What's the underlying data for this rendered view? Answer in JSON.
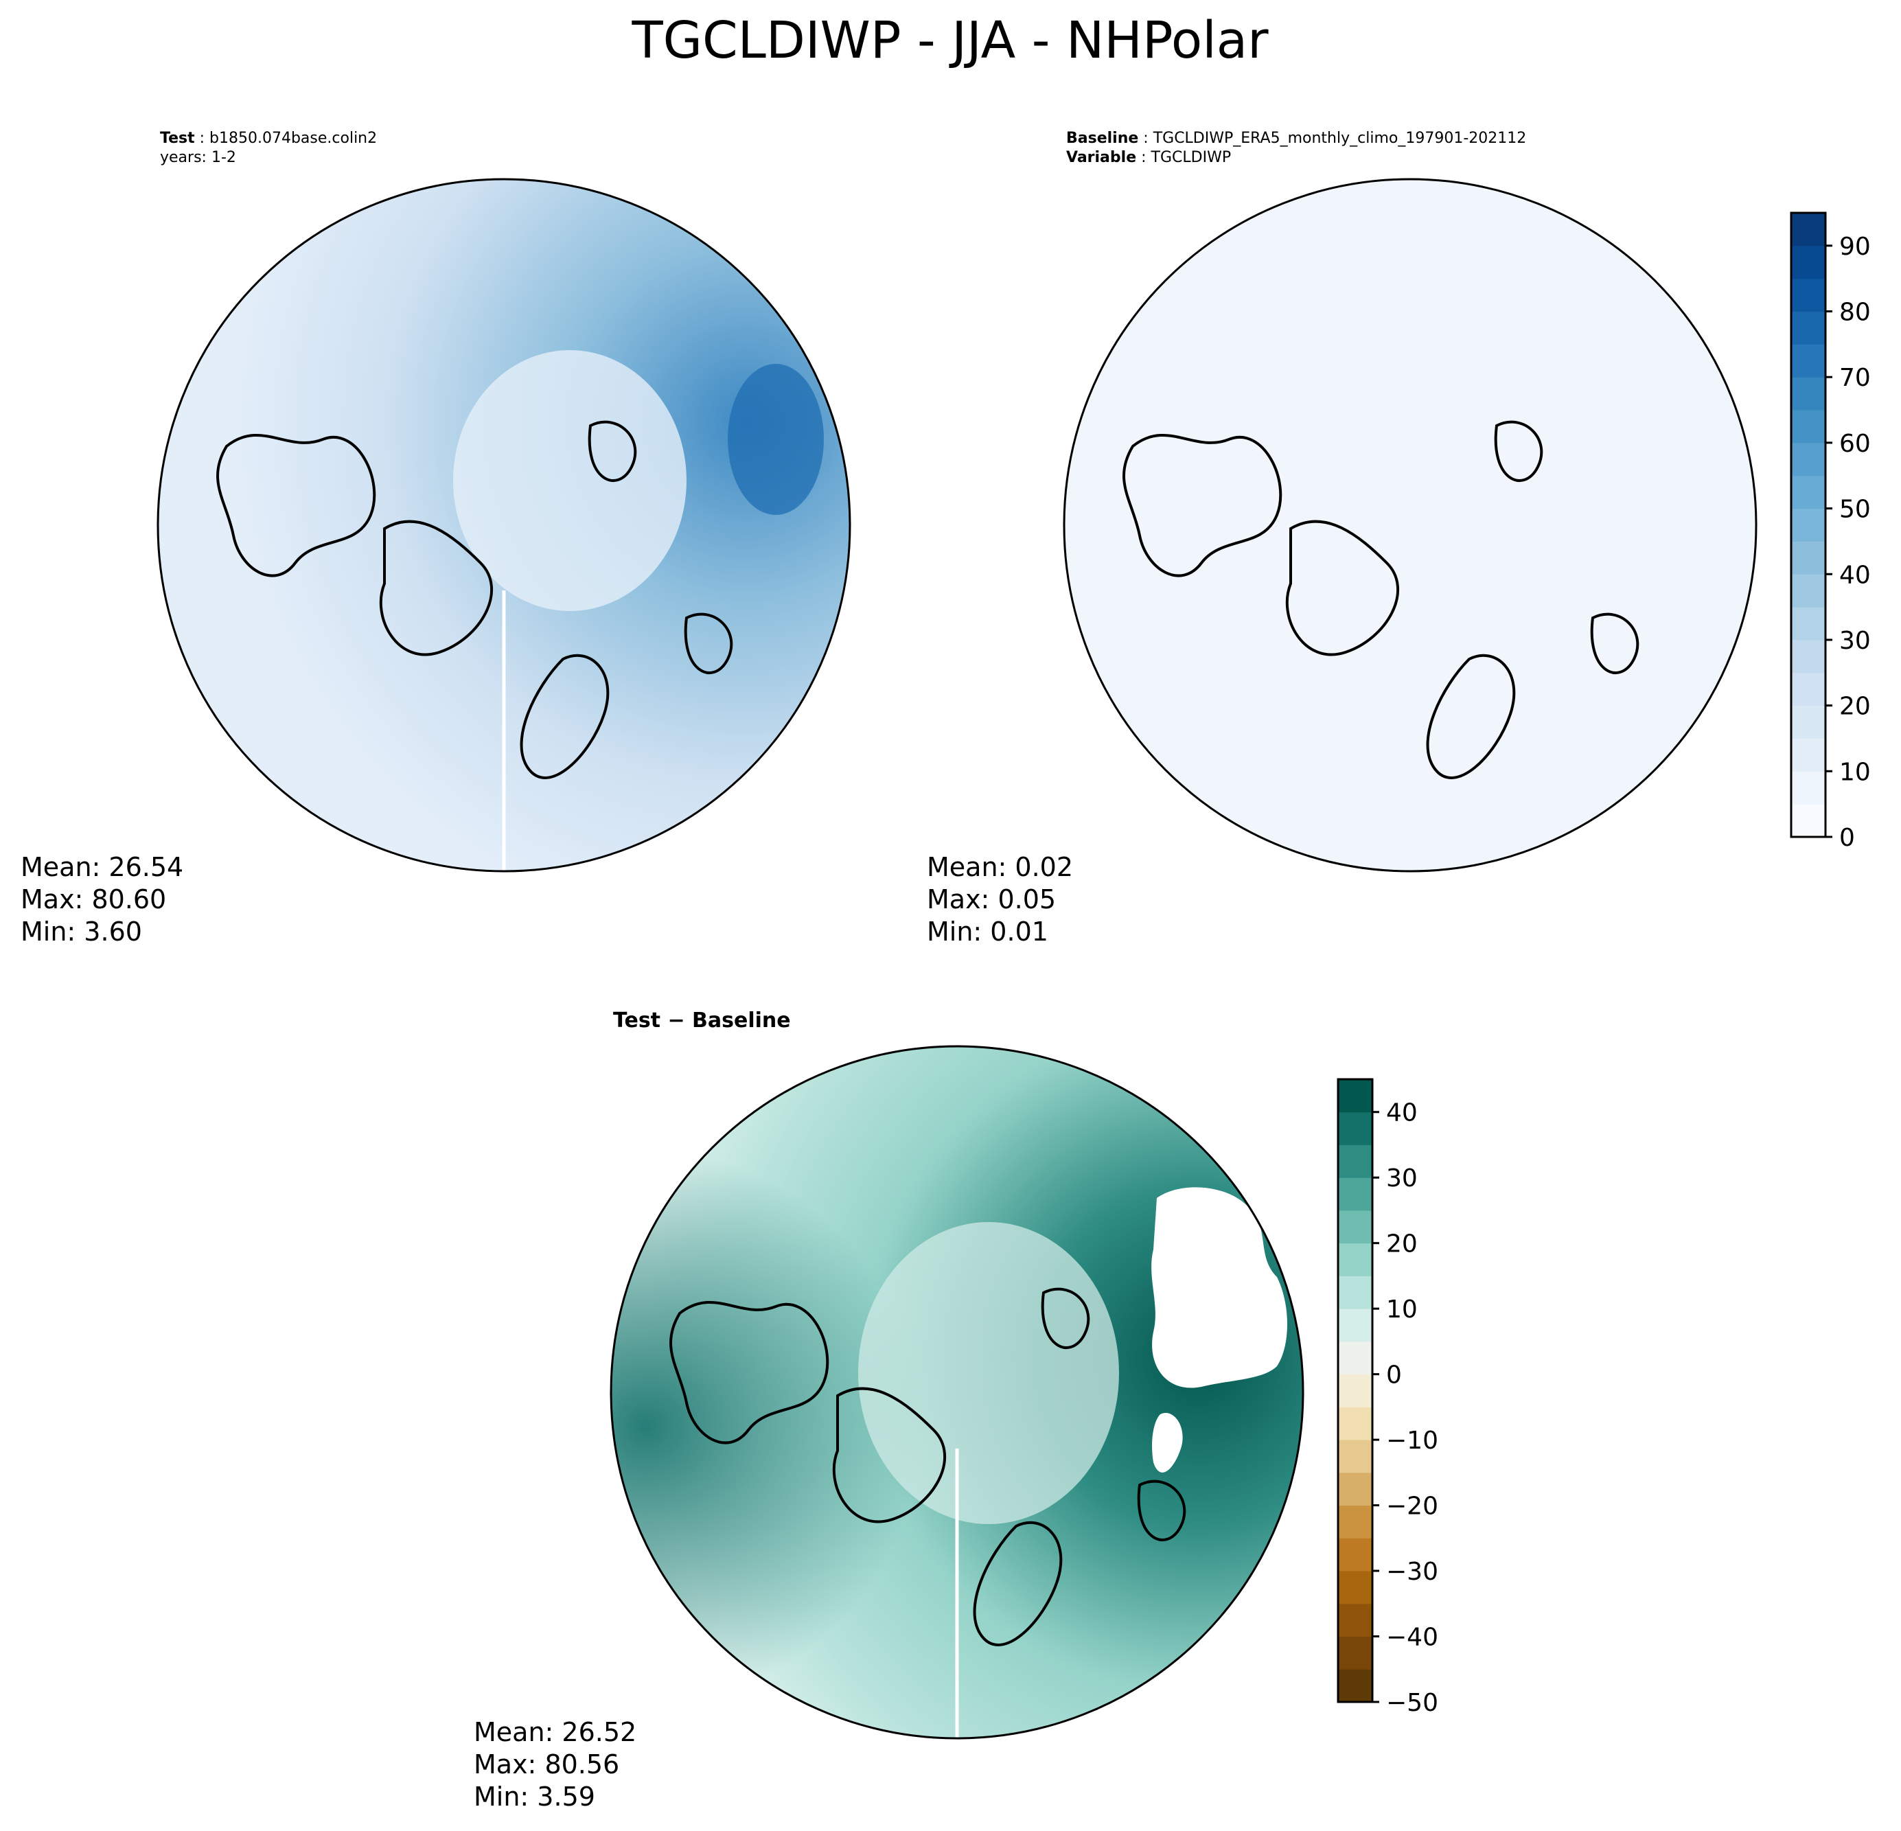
{
  "figure": {
    "title": "TGCLDIWP - JJA - NHPolar"
  },
  "panels": {
    "test": {
      "label_key": "Test",
      "label_value": "b1850.074base.colin2",
      "years": "years: 1-2",
      "stats": {
        "mean": "Mean: 26.54",
        "max": "Max: 80.60",
        "min": "Min:  3.60"
      }
    },
    "baseline": {
      "label_key": "Baseline",
      "label_value": "TGCLDIWP_ERA5_monthly_climo_197901-202112",
      "var_key": "Variable",
      "var_value": "TGCLDIWP",
      "stats": {
        "mean": "Mean:  0.02",
        "max": "Max:  0.05",
        "min": "Min:  0.01"
      }
    },
    "diff": {
      "title": "Test − Baseline",
      "stats": {
        "mean": "Mean: 26.52",
        "max": "Max: 80.56",
        "min": "Min:  3.59"
      }
    }
  },
  "colorbars": {
    "blues": {
      "ticks": [
        "0",
        "10",
        "20",
        "30",
        "40",
        "50",
        "60",
        "70",
        "80",
        "90"
      ],
      "range": [
        0,
        95
      ],
      "colors": [
        "#f7fbff",
        "#eef5fc",
        "#e3eef9",
        "#d9e8f5",
        "#cfe1f2",
        "#c2d9ee",
        "#b2d2e8",
        "#9fc8e2",
        "#8dbfdd",
        "#7ab6d9",
        "#68acd5",
        "#569fcf",
        "#4592c6",
        "#3585bf",
        "#2676b8",
        "#1967ad",
        "#0d58a1",
        "#084a91",
        "#083c7d"
      ]
    },
    "brbg": {
      "ticks": [
        "−50",
        "−40",
        "−30",
        "−20",
        "−10",
        "0",
        "10",
        "20",
        "30",
        "40"
      ],
      "range": [
        -50,
        45
      ],
      "colors": [
        "#5e3a07",
        "#774608",
        "#8f540a",
        "#a8660f",
        "#bd7a22",
        "#cb9340",
        "#d8af68",
        "#e6c98e",
        "#f1deb1",
        "#f5ecd4",
        "#eef1ec",
        "#d6eeea",
        "#b8e3dc",
        "#95d3c9",
        "#6fbdb1",
        "#4ea59a",
        "#2e8c82",
        "#13716a",
        "#02574f"
      ]
    }
  }
}
